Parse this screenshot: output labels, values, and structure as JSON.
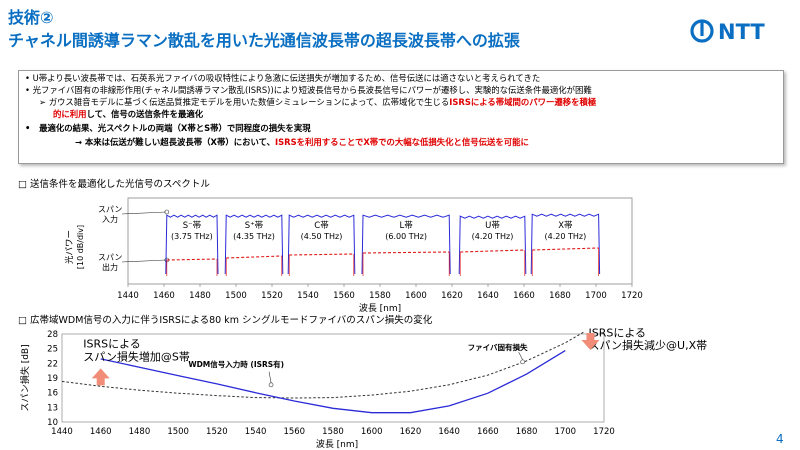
{
  "header": {
    "label": "技術②",
    "title": "チャネル間誘導ラマン散乱を用いた光通信波長帯の超長波長帯への拡張",
    "logo_text": "NTT"
  },
  "bullets": {
    "b1": "U帯より長い波長帯では、石英系光ファイバの吸収特性により急激に伝送損失が増加するため、信号伝送には適さないと考えられてきた",
    "b2": "光ファイバ固有の非線形作用(チャネル間誘導ラマン散乱(ISRS))により短波長信号から長波長信号にパワーが遷移し、実験的な伝送条件最適化が困難",
    "b3_prefix": "ガウス雑音モデルに基づく伝送品質推定モデルを用いた数値シミュレーションによって、広帯域化で生じる",
    "b3_red1": "ISRSによる帯域間のパワー遷移を積極",
    "b3_red2": "的に利用",
    "b3_suffix": "して、信号の送信条件を最適化",
    "b4": "最適化の結果、光スペクトルの両端（X帯とS帯）で同程度の損失を実現",
    "b5_prefix": "→ 本来は伝送が難しい超長波長帯（X帯）において、",
    "b5_red": "ISRSを利用することでX帯での大幅な低損失化と信号伝送を可能に"
  },
  "section1": {
    "label": "□ 送信条件を最適化した光信号のスペクトル"
  },
  "section2": {
    "label": "□ 広帯域WDM信号の入力に伴うISRSによる80 km シングルモードファイバのスパン損失の変化"
  },
  "chart_data": [
    {
      "type": "line",
      "xlabel": "波長 [nm]",
      "ylabel": "光パワー [10 dB/div]",
      "xlim": [
        1440,
        1720
      ],
      "xticks": [
        1440,
        1460,
        1480,
        1500,
        1520,
        1540,
        1560,
        1580,
        1600,
        1620,
        1640,
        1660,
        1680,
        1700,
        1720
      ],
      "series_labels": {
        "input": "スパン入力",
        "output": "スパン出力"
      },
      "bands": [
        {
          "name": "S⁻帯",
          "bw": "(3.75 THz)",
          "start": 1461,
          "end": 1490
        },
        {
          "name": "S⁺帯",
          "bw": "(4.35 THz)",
          "start": 1494,
          "end": 1526
        },
        {
          "name": "C帯",
          "bw": "(4.50 THz)",
          "start": 1529,
          "end": 1566
        },
        {
          "name": "L帯",
          "bw": "(6.00 THz)",
          "start": 1570,
          "end": 1619
        },
        {
          "name": "U帯",
          "bw": "(4.20 THz)",
          "start": 1624,
          "end": 1661
        },
        {
          "name": "X帯",
          "bw": "(4.20 THz)",
          "start": 1664,
          "end": 1702
        }
      ],
      "colors": {
        "input": "#2a2ad8",
        "output": "#e01818"
      }
    },
    {
      "type": "line",
      "xlabel": "波長 [nm]",
      "ylabel": "スパン損失 [dB]",
      "xlim": [
        1440,
        1720
      ],
      "ylim": [
        10,
        28
      ],
      "xticks": [
        1440,
        1460,
        1480,
        1500,
        1520,
        1540,
        1560,
        1580,
        1600,
        1620,
        1640,
        1660,
        1680,
        1700,
        1720
      ],
      "yticks": [
        10,
        13,
        16,
        19,
        22,
        25,
        28
      ],
      "series": [
        {
          "name": "WDM信号入力時 (ISRS有)",
          "x": [
            1460,
            1480,
            1500,
            1520,
            1540,
            1560,
            1580,
            1600,
            1620,
            1640,
            1660,
            1680,
            1700
          ],
          "y": [
            22.9,
            21.2,
            19.5,
            17.8,
            16.0,
            14.3,
            12.8,
            11.9,
            11.9,
            13.3,
            15.9,
            19.8,
            24.6
          ]
        },
        {
          "name": "ファイバ固有損失",
          "x": [
            1440,
            1460,
            1480,
            1500,
            1520,
            1540,
            1560,
            1580,
            1600,
            1620,
            1640,
            1660,
            1680,
            1700,
            1710
          ],
          "y": [
            18.3,
            17.3,
            16.5,
            15.9,
            15.4,
            15.0,
            14.9,
            15.0,
            15.5,
            16.3,
            17.6,
            19.6,
            22.5,
            26.2,
            28.5
          ]
        }
      ],
      "annotations": {
        "left": [
          "ISRSによる",
          "スパン損失増加@S帯"
        ],
        "right": [
          "ISRSによる",
          "スパン損失減少@U,X帯"
        ]
      },
      "colors": {
        "isrs": "#2a2ad8",
        "intrinsic": "#333333",
        "arrow": "#f08c78"
      }
    }
  ],
  "page": {
    "number": "4"
  }
}
